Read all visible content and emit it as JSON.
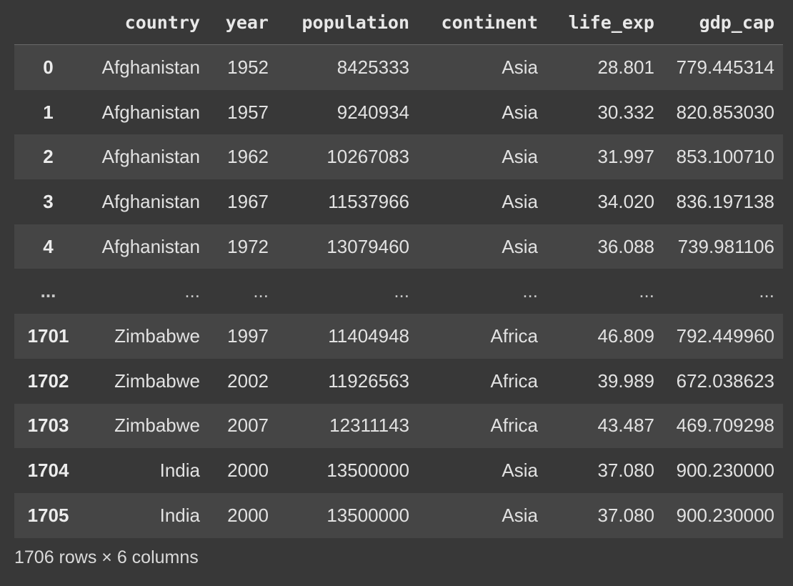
{
  "table": {
    "headers": [
      "",
      "country",
      "year",
      "population",
      "continent",
      "life_exp",
      "gdp_cap"
    ],
    "rows": [
      [
        "0",
        "Afghanistan",
        "1952",
        "8425333",
        "Asia",
        "28.801",
        "779.445314"
      ],
      [
        "1",
        "Afghanistan",
        "1957",
        "9240934",
        "Asia",
        "30.332",
        "820.853030"
      ],
      [
        "2",
        "Afghanistan",
        "1962",
        "10267083",
        "Asia",
        "31.997",
        "853.100710"
      ],
      [
        "3",
        "Afghanistan",
        "1967",
        "11537966",
        "Asia",
        "34.020",
        "836.197138"
      ],
      [
        "4",
        "Afghanistan",
        "1972",
        "13079460",
        "Asia",
        "36.088",
        "739.981106"
      ],
      [
        "...",
        "...",
        "...",
        "...",
        "...",
        "...",
        "..."
      ],
      [
        "1701",
        "Zimbabwe",
        "1997",
        "11404948",
        "Africa",
        "46.809",
        "792.449960"
      ],
      [
        "1702",
        "Zimbabwe",
        "2002",
        "11926563",
        "Africa",
        "39.989",
        "672.038623"
      ],
      [
        "1703",
        "Zimbabwe",
        "2007",
        "12311143",
        "Africa",
        "43.487",
        "469.709298"
      ],
      [
        "1704",
        "India",
        "2000",
        "13500000",
        "Asia",
        "37.080",
        "900.230000"
      ],
      [
        "1705",
        "India",
        "2000",
        "13500000",
        "Asia",
        "37.080",
        "900.230000"
      ]
    ]
  },
  "footer": "1706 rows × 6 columns",
  "colors": {
    "background": "#383838",
    "row_stripe": "#454545",
    "text": "#e6e6e6"
  }
}
